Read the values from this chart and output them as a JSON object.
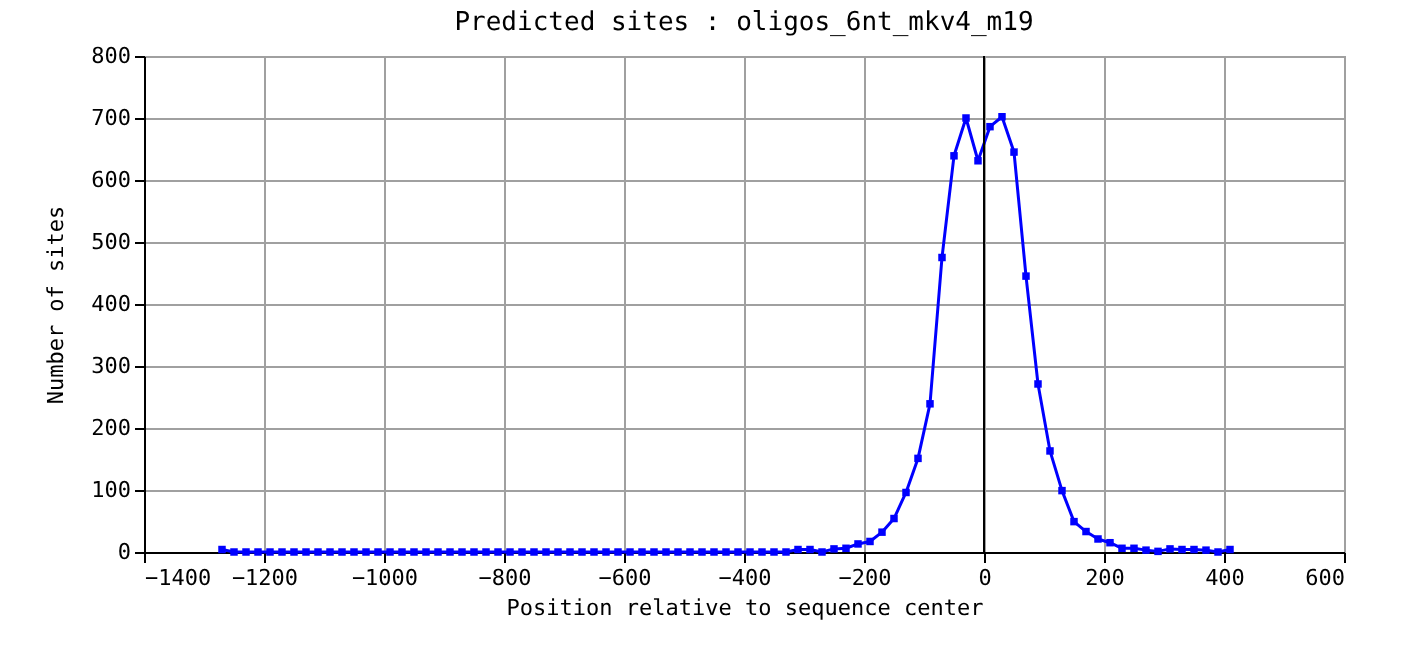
{
  "chart_data": {
    "type": "line",
    "title": "Predicted sites : oligos_6nt_mkv4_m19",
    "xlabel": "Position relative to sequence center",
    "ylabel": "Number of sites",
    "x": [
      -1270,
      -1250,
      -1230,
      -1210,
      -1190,
      -1170,
      -1150,
      -1130,
      -1110,
      -1090,
      -1070,
      -1050,
      -1030,
      -1010,
      -990,
      -970,
      -950,
      -930,
      -910,
      -890,
      -870,
      -850,
      -830,
      -810,
      -790,
      -770,
      -750,
      -730,
      -710,
      -690,
      -670,
      -650,
      -630,
      -610,
      -590,
      -570,
      -550,
      -530,
      -510,
      -490,
      -470,
      -450,
      -430,
      -410,
      -390,
      -370,
      -350,
      -330,
      -310,
      -290,
      -270,
      -250,
      -230,
      -210,
      -190,
      -170,
      -150,
      -130,
      -110,
      -90,
      -70,
      -50,
      -30,
      -10,
      10,
      30,
      50,
      70,
      90,
      110,
      130,
      150,
      170,
      190,
      210,
      230,
      250,
      270,
      290,
      310,
      330,
      350,
      370,
      390,
      410
    ],
    "series": [
      {
        "color": "#0000ff",
        "values": [
          4,
          0,
          0,
          0,
          0,
          0,
          0,
          0,
          0,
          0,
          0,
          0,
          0,
          0,
          0,
          0,
          0,
          0,
          0,
          0,
          0,
          0,
          0,
          0,
          0,
          0,
          0,
          0,
          0,
          0,
          0,
          0,
          0,
          0,
          0,
          0,
          0,
          0,
          0,
          0,
          0,
          0,
          0,
          0,
          0,
          0,
          0,
          0,
          4,
          4,
          0,
          5,
          6,
          13,
          17,
          32,
          54,
          96,
          151,
          239,
          475,
          639,
          700,
          631,
          686,
          702,
          645,
          445,
          271,
          163,
          99,
          49,
          33,
          21,
          15,
          6,
          6,
          3,
          1,
          5,
          4,
          4,
          3,
          0,
          4
        ]
      }
    ],
    "xlim": [
      -1400,
      600
    ],
    "xticks": [
      -1400,
      -1200,
      -1000,
      -800,
      -600,
      -400,
      -200,
      0,
      200,
      400,
      600
    ],
    "ylim": [
      0,
      800
    ],
    "yticks": [
      0,
      100,
      200,
      300,
      400,
      500,
      600,
      700,
      800
    ],
    "grid": true,
    "marker": "square",
    "line_style": "solid",
    "ref_lines": [
      {
        "axis": "x",
        "value": 0,
        "color": "#000000"
      }
    ]
  }
}
